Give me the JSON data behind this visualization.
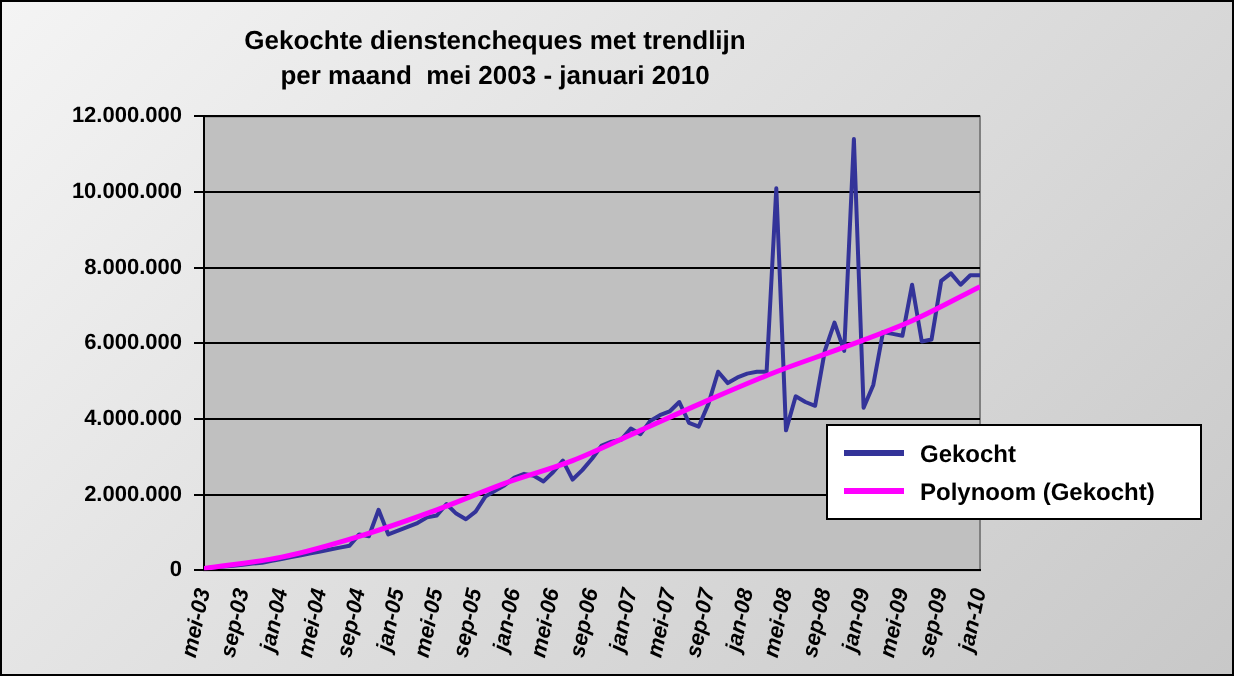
{
  "chart_data": {
    "type": "line",
    "title": "Gekochte dienstencheques met trendlijn",
    "subtitle": "per maand  mei 2003 - januari 2010",
    "series": [
      {
        "name": "Gekocht",
        "color": "#333399",
        "x": [
          "2003-05",
          "2003-06",
          "2003-07",
          "2003-08",
          "2003-09",
          "2003-10",
          "2003-11",
          "2003-12",
          "2004-01",
          "2004-02",
          "2004-03",
          "2004-04",
          "2004-05",
          "2004-06",
          "2004-07",
          "2004-08",
          "2004-09",
          "2004-10",
          "2004-11",
          "2004-12",
          "2005-01",
          "2005-02",
          "2005-03",
          "2005-04",
          "2005-05",
          "2005-06",
          "2005-07",
          "2005-08",
          "2005-09",
          "2005-10",
          "2005-11",
          "2005-12",
          "2006-01",
          "2006-02",
          "2006-03",
          "2006-04",
          "2006-05",
          "2006-06",
          "2006-07",
          "2006-08",
          "2006-09",
          "2006-10",
          "2006-11",
          "2006-12",
          "2007-01",
          "2007-02",
          "2007-03",
          "2007-04",
          "2007-05",
          "2007-06",
          "2007-07",
          "2007-08",
          "2007-09",
          "2007-10",
          "2007-11",
          "2007-12",
          "2008-01",
          "2008-02",
          "2008-03",
          "2008-04",
          "2008-05",
          "2008-06",
          "2008-07",
          "2008-08",
          "2008-09",
          "2008-10",
          "2008-11",
          "2008-12",
          "2009-01",
          "2009-02",
          "2009-03",
          "2009-04",
          "2009-05",
          "2009-06",
          "2009-07",
          "2009-08",
          "2009-09",
          "2009-10",
          "2009-11",
          "2009-12",
          "2010-01"
        ],
        "values": [
          50000,
          80000,
          100000,
          120000,
          150000,
          180000,
          200000,
          250000,
          300000,
          350000,
          400000,
          450000,
          500000,
          550000,
          600000,
          650000,
          950000,
          900000,
          1600000,
          950000,
          1050000,
          1150000,
          1250000,
          1400000,
          1450000,
          1750000,
          1500000,
          1350000,
          1550000,
          1950000,
          2100000,
          2250000,
          2450000,
          2550000,
          2500000,
          2350000,
          2600000,
          2900000,
          2400000,
          2650000,
          2950000,
          3300000,
          3400000,
          3450000,
          3750000,
          3600000,
          3950000,
          4100000,
          4200000,
          4450000,
          3900000,
          3800000,
          4400000,
          5250000,
          4950000,
          5100000,
          5200000,
          5250000,
          5250000,
          10100000,
          3700000,
          4600000,
          4450000,
          4350000,
          5800000,
          6550000,
          5800000,
          11400000,
          4300000,
          4900000,
          6300000,
          6250000,
          6200000,
          7550000,
          6050000,
          6100000,
          7650000,
          7850000,
          7550000,
          7800000,
          7800000
        ]
      },
      {
        "name": "Polynoom (Gekocht)",
        "color": "#ff00ff",
        "x": [
          "2003-05",
          "2004-01",
          "2004-09",
          "2005-05",
          "2005-12",
          "2006-07",
          "2007-02",
          "2007-09",
          "2008-04",
          "2008-11",
          "2009-06",
          "2010-01"
        ],
        "values": [
          50000,
          350000,
          900000,
          1600000,
          2300000,
          2900000,
          3700000,
          4500000,
          5250000,
          5900000,
          6600000,
          7500000
        ]
      }
    ],
    "xlim": [
      "2003-05",
      "2010-01"
    ],
    "xticks": [
      {
        "value": "2003-05",
        "label": "mei-03"
      },
      {
        "value": "2003-09",
        "label": "sep-03"
      },
      {
        "value": "2004-01",
        "label": "jan-04"
      },
      {
        "value": "2004-05",
        "label": "mei-04"
      },
      {
        "value": "2004-09",
        "label": "sep-04"
      },
      {
        "value": "2005-01",
        "label": "jan-05"
      },
      {
        "value": "2005-05",
        "label": "mei-05"
      },
      {
        "value": "2005-09",
        "label": "sep-05"
      },
      {
        "value": "2006-01",
        "label": "jan-06"
      },
      {
        "value": "2006-05",
        "label": "mei-06"
      },
      {
        "value": "2006-09",
        "label": "sep-06"
      },
      {
        "value": "2007-01",
        "label": "jan-07"
      },
      {
        "value": "2007-05",
        "label": "mei-07"
      },
      {
        "value": "2007-09",
        "label": "sep-07"
      },
      {
        "value": "2008-01",
        "label": "jan-08"
      },
      {
        "value": "2008-05",
        "label": "mei-08"
      },
      {
        "value": "2008-09",
        "label": "sep-08"
      },
      {
        "value": "2009-01",
        "label": "jan-09"
      },
      {
        "value": "2009-05",
        "label": "mei-09"
      },
      {
        "value": "2009-09",
        "label": "sep-09"
      },
      {
        "value": "2010-01",
        "label": "jan-10"
      }
    ],
    "ylim": [
      0,
      12000000
    ],
    "yticks": [
      0,
      {
        "value": 2000000,
        "label": "2.000.000"
      },
      {
        "value": 4000000,
        "label": "4.000.000"
      },
      {
        "value": 6000000,
        "label": "6.000.000"
      },
      {
        "value": 8000000,
        "label": "8.000.000"
      },
      {
        "value": 10000000,
        "label": "10.000.000"
      },
      {
        "value": 12000000,
        "label": "12.000.000"
      }
    ],
    "grid": "y",
    "legend": "bottom right"
  }
}
